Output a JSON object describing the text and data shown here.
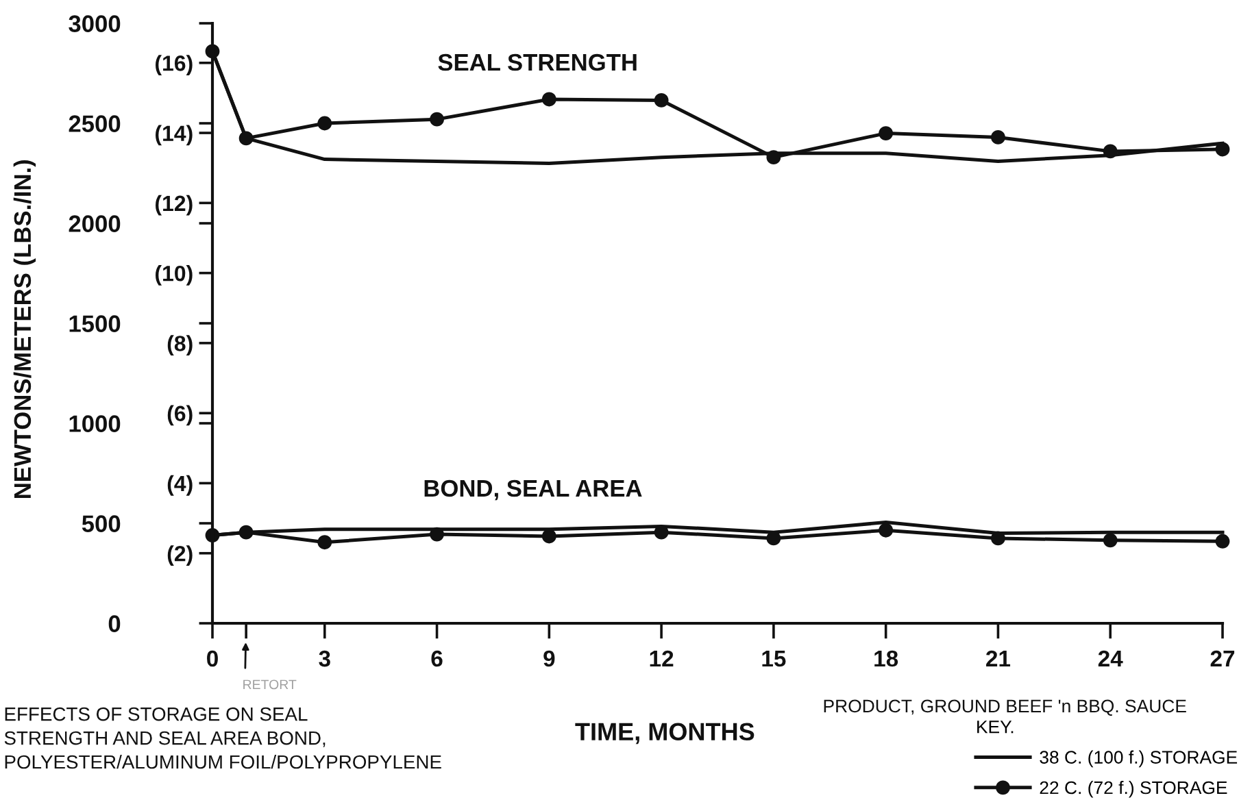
{
  "chart_data": {
    "type": "line",
    "xlabel": "TIME, MONTHS",
    "ylabel": "NEWTONS/METERS (LBS./IN.)",
    "legend_title": "KEY.",
    "annotations": [
      "SEAL STRENGTH",
      "BOND, SEAL AREA",
      "RETORT",
      "EFFECTS OF STORAGE ON SEAL\nSTRENGTH AND SEAL AREA BOND,\nPOLYESTER/ALUMINUM FOIL/POLYPROPYLENE",
      "PRODUCT, GROUND BEEF 'n BBQ. SAUCE"
    ],
    "x": [
      0,
      0.9,
      3,
      6,
      9,
      12,
      15,
      18,
      21,
      24,
      27
    ],
    "series": [
      {
        "name": "38 C. (100 f.) STORAGE",
        "color": "#111111",
        "marker": "none",
        "values": [
          2860,
          2425,
          2320,
          2310,
          2300,
          2330,
          2350,
          2350,
          2310,
          2340,
          2400
        ]
      },
      {
        "name": "22 C. (72 f.) STORAGE",
        "color": "#111111",
        "marker": "circle",
        "values": [
          2860,
          2425,
          2500,
          2520,
          2620,
          2615,
          2330,
          2450,
          2430,
          2360,
          2370
        ]
      },
      {
        "color": "#111111",
        "marker": "none",
        "values": [
          440,
          455,
          470,
          470,
          470,
          485,
          455,
          505,
          450,
          455,
          455
        ]
      },
      {
        "color": "#111111",
        "marker": "circle",
        "values": [
          440,
          455,
          405,
          445,
          435,
          455,
          425,
          465,
          425,
          415,
          410
        ]
      }
    ],
    "xlim": [
      0,
      27
    ],
    "xticks": [
      0,
      {
        "value": 0.9,
        "label": null
      },
      3,
      6,
      9,
      12,
      15,
      18,
      21,
      24,
      27
    ],
    "ylim": [
      0,
      3000
    ],
    "yticks": [
      0,
      500,
      1000,
      1500,
      2000,
      2500,
      3000
    ],
    "y2lim": [
      0,
      17.13
    ],
    "y2ticks": [
      {
        "value": 2,
        "label": "(2)"
      },
      {
        "value": 4,
        "label": "(4)"
      },
      {
        "value": 6,
        "label": "(6)"
      },
      {
        "value": 8,
        "label": "(8)"
      },
      {
        "value": 10,
        "label": "(10)"
      },
      {
        "value": 12,
        "label": "(12)"
      },
      {
        "value": 14,
        "label": "(14)"
      },
      {
        "value": 16,
        "label": "(16)"
      }
    ],
    "legend": "bottom right",
    "line_style": "solid"
  }
}
